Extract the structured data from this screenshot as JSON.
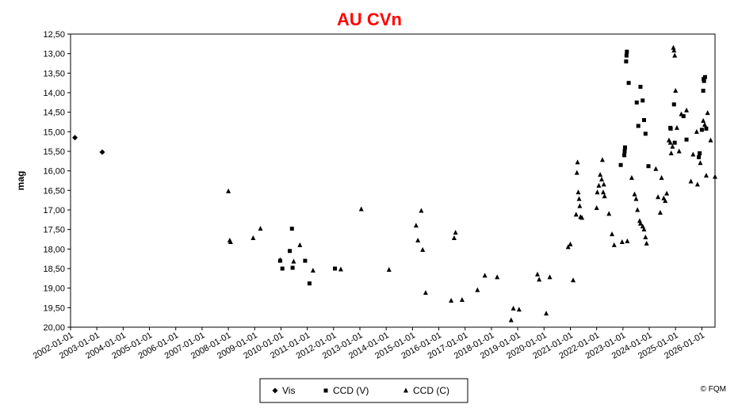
{
  "chart_data": {
    "type": "scatter",
    "title": "AU CVn",
    "ylabel": "mag",
    "xlabel": "",
    "y_inverted": true,
    "ylim": [
      12.5,
      20.0
    ],
    "xlim": [
      "2002-01-01",
      "2026-07-01"
    ],
    "y_ticks": [
      "12,50",
      "13,00",
      "13,50",
      "14,00",
      "14,50",
      "15,00",
      "15,50",
      "16,00",
      "16,50",
      "17,00",
      "17,50",
      "18,00",
      "18,50",
      "19,00",
      "19,50",
      "20,00"
    ],
    "x_ticks": [
      "2002-01-01",
      "2003-01-01",
      "2004-01-01",
      "2005-01-01",
      "2006-01-01",
      "2007-01-01",
      "2008-01-01",
      "2009-01-01",
      "2010-01-01",
      "2011-01-01",
      "2012-01-01",
      "2013-01-01",
      "2014-01-01",
      "2015-01-01",
      "2016-01-01",
      "2017-01-01",
      "2018-01-01",
      "2019-01-01",
      "2020-01-01",
      "2021-01-01",
      "2022-01-01",
      "2023-01-01",
      "2024-01-01",
      "2025-01-01",
      "2026-01-01"
    ],
    "grid": false,
    "legend_position": "bottom",
    "credit": "© FQM",
    "series": [
      {
        "name": "Vis",
        "marker": "diamond",
        "points": [
          [
            "2002-03-01",
            15.15
          ],
          [
            "2003-03-15",
            15.52
          ]
        ]
      },
      {
        "name": "CCD (V)",
        "marker": "square",
        "points": [
          [
            "2009-12-20",
            18.3
          ],
          [
            "2010-01-20",
            18.5
          ],
          [
            "2010-05-01",
            18.05
          ],
          [
            "2010-06-01",
            17.48
          ],
          [
            "2010-06-10",
            18.48
          ],
          [
            "2010-12-01",
            18.3
          ],
          [
            "2011-02-01",
            18.88
          ],
          [
            "2012-01-20",
            18.5
          ],
          [
            "2022-12-01",
            15.85
          ],
          [
            "2023-01-20",
            15.6
          ],
          [
            "2023-01-25",
            15.5
          ],
          [
            "2023-01-30",
            15.4
          ],
          [
            "2023-02-15",
            13.2
          ],
          [
            "2023-02-20",
            13.05
          ],
          [
            "2023-02-25",
            12.95
          ],
          [
            "2023-03-20",
            13.75
          ],
          [
            "2023-07-10",
            14.25
          ],
          [
            "2023-08-01",
            14.85
          ],
          [
            "2023-09-01",
            13.85
          ],
          [
            "2023-10-01",
            14.2
          ],
          [
            "2023-10-20",
            14.7
          ],
          [
            "2023-11-10",
            15.05
          ],
          [
            "2023-12-20",
            15.88
          ],
          [
            "2024-10-20",
            14.9
          ],
          [
            "2024-10-25",
            14.92
          ],
          [
            "2024-12-10",
            14.3
          ],
          [
            "2024-12-20",
            15.28
          ],
          [
            "2025-04-20",
            14.6
          ],
          [
            "2025-06-01",
            15.2
          ],
          [
            "2025-11-20",
            15.65
          ],
          [
            "2025-12-01",
            15.55
          ],
          [
            "2026-01-01",
            14.95
          ],
          [
            "2026-01-20",
            13.95
          ],
          [
            "2026-01-25",
            13.65
          ],
          [
            "2026-02-01",
            13.7
          ],
          [
            "2026-02-15",
            13.6
          ],
          [
            "2026-03-01",
            14.92
          ]
        ]
      },
      {
        "name": "CCD (C)",
        "marker": "triangle",
        "points": [
          [
            "2008-01-01",
            16.52
          ],
          [
            "2008-01-20",
            17.78
          ],
          [
            "2008-02-01",
            17.82
          ],
          [
            "2008-12-10",
            17.72
          ],
          [
            "2009-03-20",
            17.48
          ],
          [
            "2009-12-20",
            18.28
          ],
          [
            "2010-06-25",
            18.32
          ],
          [
            "2010-09-20",
            17.9
          ],
          [
            "2011-03-20",
            18.55
          ],
          [
            "2012-04-10",
            18.52
          ],
          [
            "2013-01-20",
            16.98
          ],
          [
            "2014-02-10",
            18.53
          ],
          [
            "2015-02-20",
            17.4
          ],
          [
            "2015-03-15",
            17.78
          ],
          [
            "2015-05-01",
            17.02
          ],
          [
            "2015-05-20",
            18.02
          ],
          [
            "2015-07-01",
            19.12
          ],
          [
            "2016-06-20",
            19.32
          ],
          [
            "2016-08-01",
            17.72
          ],
          [
            "2016-08-20",
            17.58
          ],
          [
            "2016-11-20",
            19.3
          ],
          [
            "2017-06-20",
            19.05
          ],
          [
            "2017-10-01",
            18.68
          ],
          [
            "2018-03-20",
            18.72
          ],
          [
            "2018-10-01",
            19.82
          ],
          [
            "2018-11-01",
            19.52
          ],
          [
            "2019-01-20",
            19.55
          ],
          [
            "2019-10-01",
            18.65
          ],
          [
            "2019-10-25",
            18.78
          ],
          [
            "2020-02-01",
            19.65
          ],
          [
            "2020-03-20",
            18.72
          ],
          [
            "2020-12-01",
            17.95
          ],
          [
            "2021-01-01",
            17.88
          ],
          [
            "2021-02-10",
            18.8
          ],
          [
            "2021-03-20",
            17.12
          ],
          [
            "2021-04-01",
            16.05
          ],
          [
            "2021-04-10",
            15.78
          ],
          [
            "2021-04-20",
            16.55
          ],
          [
            "2021-05-01",
            16.72
          ],
          [
            "2021-05-10",
            16.9
          ],
          [
            "2021-05-20",
            17.18
          ],
          [
            "2021-06-10",
            17.2
          ],
          [
            "2022-01-01",
            16.95
          ],
          [
            "2022-01-10",
            16.55
          ],
          [
            "2022-02-01",
            16.38
          ],
          [
            "2022-02-20",
            16.1
          ],
          [
            "2022-03-10",
            16.22
          ],
          [
            "2022-03-20",
            15.72
          ],
          [
            "2022-04-01",
            16.55
          ],
          [
            "2022-04-10",
            16.35
          ],
          [
            "2022-04-20",
            16.65
          ],
          [
            "2022-06-20",
            17.1
          ],
          [
            "2022-08-01",
            17.62
          ],
          [
            "2022-09-01",
            17.9
          ],
          [
            "2022-12-20",
            17.82
          ],
          [
            "2023-03-01",
            17.8
          ],
          [
            "2023-05-01",
            16.18
          ],
          [
            "2023-06-10",
            16.6
          ],
          [
            "2023-07-01",
            16.72
          ],
          [
            "2023-07-20",
            17.0
          ],
          [
            "2023-08-20",
            17.28
          ],
          [
            "2023-09-01",
            17.35
          ],
          [
            "2023-10-01",
            17.42
          ],
          [
            "2023-10-20",
            17.5
          ],
          [
            "2023-11-10",
            17.7
          ],
          [
            "2023-11-25",
            17.86
          ],
          [
            "2024-04-01",
            15.95
          ],
          [
            "2024-05-01",
            16.67
          ],
          [
            "2024-06-01",
            17.07
          ],
          [
            "2024-06-20",
            16.18
          ],
          [
            "2024-07-20",
            16.7
          ],
          [
            "2024-08-10",
            16.77
          ],
          [
            "2024-09-01",
            16.58
          ],
          [
            "2024-10-01",
            15.22
          ],
          [
            "2024-10-20",
            15.28
          ],
          [
            "2024-11-01",
            15.55
          ],
          [
            "2024-11-20",
            15.38
          ],
          [
            "2024-12-01",
            12.85
          ],
          [
            "2024-12-10",
            12.92
          ],
          [
            "2024-12-20",
            13.05
          ],
          [
            "2025-01-01",
            13.95
          ],
          [
            "2025-01-20",
            14.9
          ],
          [
            "2025-02-20",
            15.5
          ],
          [
            "2025-03-20",
            14.55
          ],
          [
            "2025-06-01",
            14.45
          ],
          [
            "2025-08-01",
            16.27
          ],
          [
            "2025-09-01",
            15.58
          ],
          [
            "2025-10-20",
            15.0
          ],
          [
            "2025-11-01",
            16.35
          ],
          [
            "2025-12-10",
            15.8
          ],
          [
            "2026-01-20",
            14.72
          ],
          [
            "2026-02-10",
            14.82
          ],
          [
            "2026-03-01",
            16.12
          ],
          [
            "2026-03-20",
            14.52
          ],
          [
            "2026-05-01",
            15.22
          ],
          [
            "2026-07-01",
            16.15
          ],
          [
            "2026-07-20",
            15.72
          ],
          [
            "2026-08-10",
            15.22
          ],
          [
            "2026-10-01",
            15.52
          ]
        ]
      }
    ]
  }
}
